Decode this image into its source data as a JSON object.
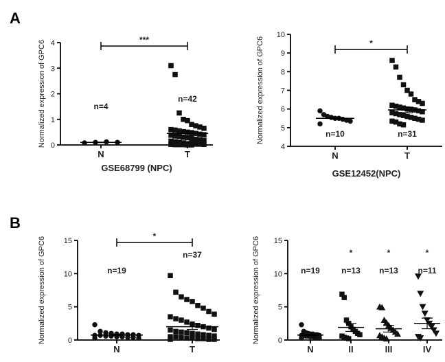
{
  "panels": [
    {
      "label": "A"
    },
    {
      "label": "B"
    }
  ],
  "chart_data": [
    {
      "type": "scatter",
      "title": "GSE68799 (NPC)",
      "ylabel": "Normalized expression of GPC6",
      "ylim": [
        0,
        4
      ],
      "yticks": [
        "0",
        "1",
        "2",
        "3",
        "4"
      ],
      "categories": [
        "N",
        "T"
      ],
      "marker": [
        "circle",
        "square"
      ],
      "n_labels": [
        "n=4",
        "n=42"
      ],
      "means": [
        0.1,
        0.45
      ],
      "sems": [
        0.01,
        0.09
      ],
      "points": [
        [
          0.08,
          0.1,
          0.12,
          0.1
        ],
        [
          3.1,
          2.75,
          1.25,
          1.0,
          0.95,
          0.8,
          0.75,
          0.7,
          0.65,
          0.6,
          0.58,
          0.55,
          0.52,
          0.5,
          0.48,
          0.45,
          0.42,
          0.4,
          0.38,
          0.35,
          0.33,
          0.3,
          0.28,
          0.25,
          0.22,
          0.2,
          0.18,
          0.15,
          0.12,
          0.1,
          0.08,
          0.05,
          0.05,
          0.03,
          0.03,
          0.02,
          0.02,
          0.01,
          0.01,
          0.01,
          0.0,
          0.0
        ]
      ],
      "significance": [
        {
          "between": [
            "N",
            "T"
          ],
          "label": "***"
        }
      ]
    },
    {
      "type": "scatter",
      "title": "GSE12452(NPC)",
      "ylabel": "Normalized expression of GPC6",
      "ylim": [
        4,
        10
      ],
      "yticks": [
        "4",
        "5",
        "6",
        "7",
        "8",
        "9",
        "10"
      ],
      "categories": [
        "N",
        "T"
      ],
      "marker": [
        "circle",
        "square"
      ],
      "n_labels": [
        "n=10",
        "n=31"
      ],
      "means": [
        5.5,
        5.95
      ],
      "sems": [
        0.05,
        0.15
      ],
      "points": [
        [
          5.9,
          5.7,
          5.6,
          5.55,
          5.5,
          5.5,
          5.45,
          5.4,
          5.35,
          5.2
        ],
        [
          8.6,
          8.25,
          7.7,
          7.3,
          7.0,
          6.8,
          6.5,
          6.4,
          6.3,
          6.2,
          6.15,
          6.1,
          6.05,
          6.0,
          5.98,
          5.95,
          5.9,
          5.85,
          5.8,
          5.75,
          5.7,
          5.65,
          5.6,
          5.55,
          5.5,
          5.45,
          5.4,
          5.35,
          5.3,
          5.2,
          5.15
        ]
      ],
      "significance": [
        {
          "between": [
            "N",
            "T"
          ],
          "label": "*"
        }
      ]
    },
    {
      "type": "scatter",
      "title": "",
      "ylabel": "Normalized expression of GPC6",
      "ylim": [
        0,
        15
      ],
      "yticks": [
        "0",
        "5",
        "10",
        "15"
      ],
      "categories": [
        "N",
        "T"
      ],
      "marker": [
        "circle",
        "square"
      ],
      "n_labels": [
        "n=19",
        "n=37"
      ],
      "means": [
        0.75,
        2.0
      ],
      "sems": [
        0.1,
        0.4
      ],
      "points": [
        [
          2.3,
          1.3,
          1.1,
          1.0,
          0.9,
          0.9,
          0.8,
          0.8,
          0.7,
          0.7,
          0.7,
          0.6,
          0.6,
          0.5,
          0.5,
          0.4,
          0.4,
          0.3,
          0.3
        ],
        [
          9.7,
          7.2,
          6.5,
          6.1,
          5.8,
          5.2,
          4.8,
          4.3,
          3.9,
          3.5,
          3.2,
          3.0,
          2.7,
          2.4,
          2.2,
          2.0,
          1.8,
          1.6,
          1.5,
          1.3,
          1.2,
          1.1,
          1.0,
          0.9,
          0.8,
          0.7,
          0.6,
          0.5,
          0.5,
          0.4,
          0.3,
          0.3,
          0.2,
          0.2,
          0.1,
          0.1,
          0.1
        ]
      ],
      "significance": [
        {
          "between": [
            "N",
            "T"
          ],
          "label": "*"
        }
      ]
    },
    {
      "type": "scatter",
      "title": "",
      "ylabel": "Normalized expression of GPC6",
      "ylim": [
        0,
        15
      ],
      "yticks": [
        "0",
        "5",
        "10",
        "15"
      ],
      "categories": [
        "N",
        "II",
        "III",
        "IV"
      ],
      "marker": [
        "circle",
        "square",
        "triangle-up",
        "triangle-down"
      ],
      "n_labels": [
        "n=19",
        "n=13",
        "n=13",
        "n=11"
      ],
      "means": [
        0.75,
        1.9,
        1.7,
        2.5
      ],
      "sems": [
        0.1,
        0.6,
        0.5,
        0.8
      ],
      "points": [
        [
          2.3,
          1.3,
          1.1,
          1.0,
          0.9,
          0.9,
          0.8,
          0.8,
          0.7,
          0.7,
          0.7,
          0.6,
          0.6,
          0.5,
          0.5,
          0.4,
          0.4,
          0.3,
          0.3
        ],
        [
          6.9,
          6.4,
          3.0,
          2.5,
          2.0,
          1.6,
          1.3,
          1.0,
          0.8,
          0.6,
          0.4,
          0.3,
          0.2
        ],
        [
          5.0,
          4.9,
          3.0,
          2.6,
          2.2,
          1.8,
          1.5,
          1.2,
          0.9,
          0.7,
          0.5,
          0.3,
          0.2
        ],
        [
          9.6,
          7.0,
          5.0,
          4.0,
          3.0,
          2.5,
          2.0,
          1.5,
          1.0,
          0.5,
          0.3
        ]
      ],
      "significance": [
        {
          "group": "II",
          "label": "*"
        },
        {
          "group": "III",
          "label": "*"
        },
        {
          "group": "IV",
          "label": "*"
        }
      ]
    }
  ]
}
